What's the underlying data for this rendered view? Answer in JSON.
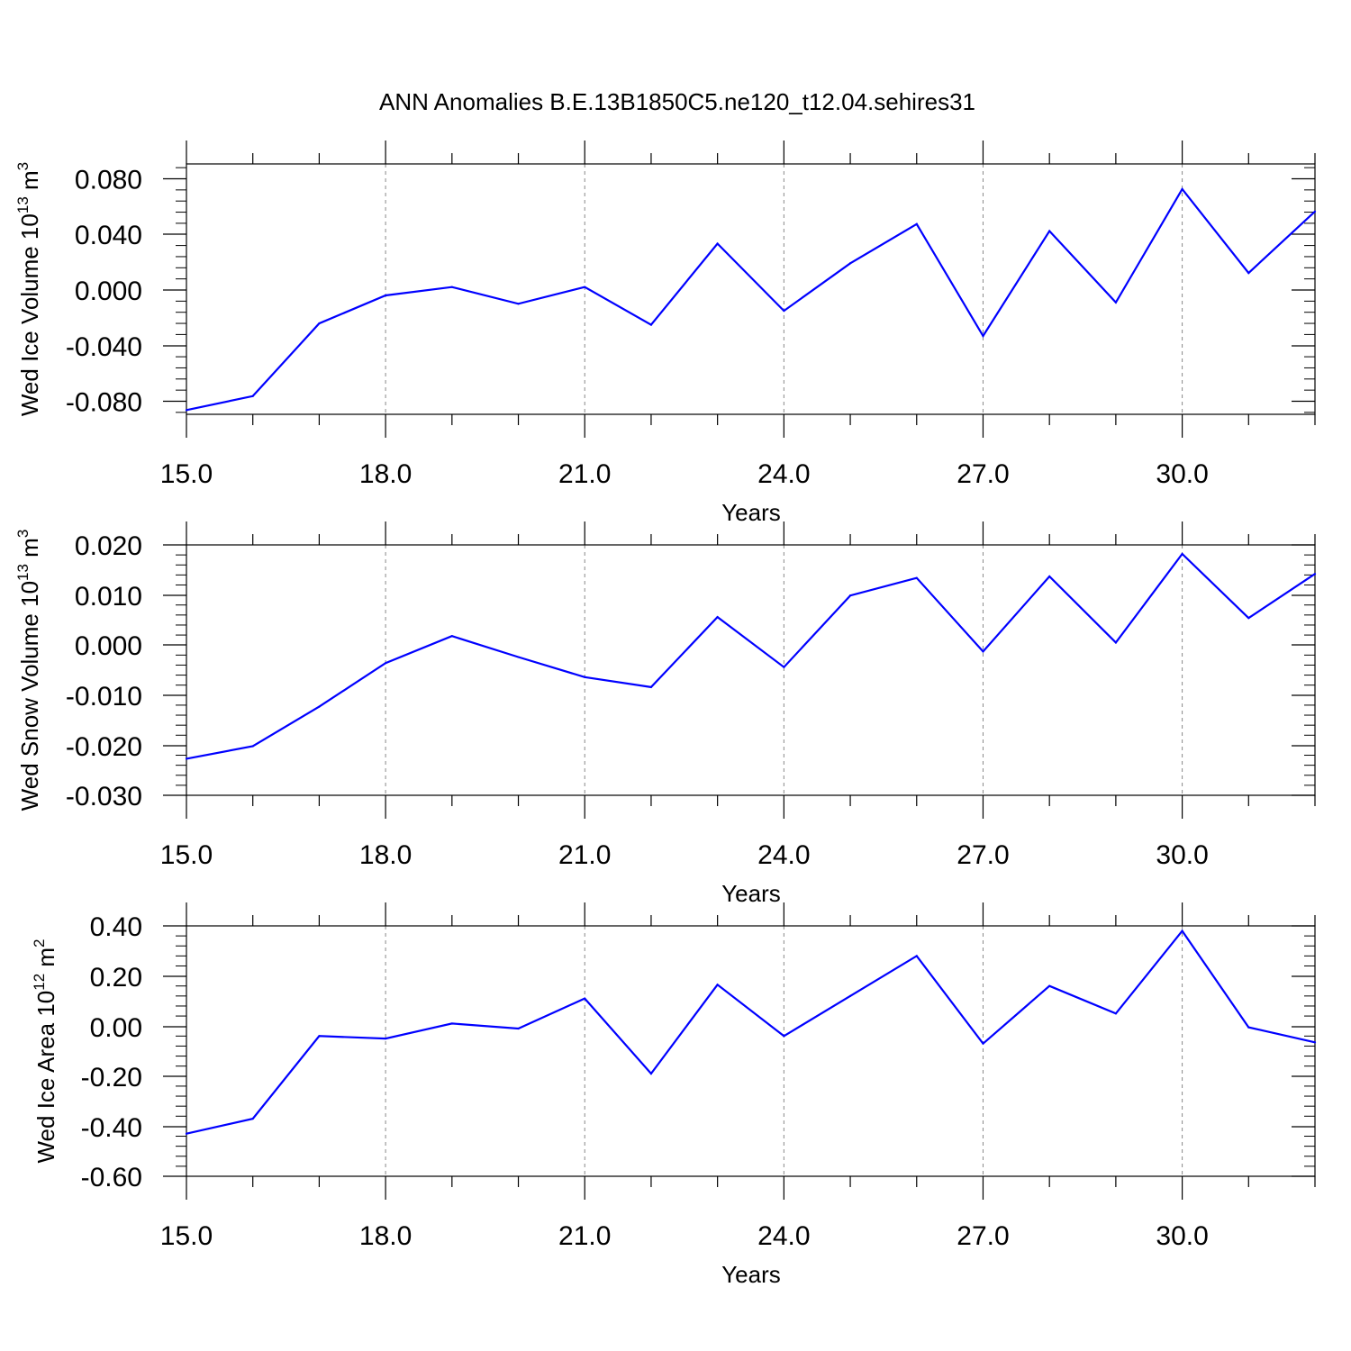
{
  "title": "ANN Anomalies B.E.13B1850C5.ne120_t12.04.sehires31",
  "colors": {
    "line": "#0000ff",
    "axis": "#000000",
    "grid": "#888888",
    "background": "#ffffff"
  },
  "chart_data": [
    {
      "type": "line",
      "ylabel": {
        "main": "Wed Ice Volume 10",
        "sup": "13",
        "unit": " m",
        "unit_sup": "3"
      },
      "xlabel": "Years",
      "xlim": [
        15,
        32
      ],
      "ylim": [
        -0.089,
        0.09
      ],
      "x_ticks": [
        "15.0",
        "18.0",
        "21.0",
        "24.0",
        "27.0",
        "30.0"
      ],
      "y_ticks": [
        "0.080",
        "0.040",
        "0.000",
        "-0.040",
        "-0.080"
      ],
      "grid": "vertical dashed at major x ticks",
      "series": [
        {
          "name": "Wed Ice Volume",
          "x": [
            15,
            16,
            17,
            18,
            19,
            20,
            21,
            22,
            23,
            24,
            25,
            26,
            27,
            28,
            29,
            30,
            31,
            32
          ],
          "values": [
            -0.086,
            -0.076,
            -0.024,
            -0.004,
            0.002,
            -0.01,
            0.002,
            -0.025,
            0.033,
            -0.015,
            0.019,
            0.047,
            -0.033,
            0.042,
            -0.009,
            0.072,
            0.012,
            0.056
          ]
        }
      ]
    },
    {
      "type": "line",
      "ylabel": {
        "main": "Wed Snow Volume 10",
        "sup": "13",
        "unit": " m",
        "unit_sup": "3"
      },
      "xlabel": "Years",
      "xlim": [
        15,
        32
      ],
      "ylim": [
        -0.03,
        0.02
      ],
      "x_ticks": [
        "15.0",
        "18.0",
        "21.0",
        "24.0",
        "27.0",
        "30.0"
      ],
      "y_ticks": [
        "0.020",
        "0.010",
        "0.000",
        "-0.010",
        "-0.020",
        "-0.030"
      ],
      "grid": "vertical dashed at major x ticks",
      "series": [
        {
          "name": "Wed Snow Volume",
          "x": [
            15,
            16,
            17,
            18,
            19,
            20,
            21,
            22,
            23,
            24,
            25,
            26,
            27,
            28,
            29,
            30,
            31,
            32
          ],
          "values": [
            -0.0227,
            -0.0202,
            -0.0123,
            -0.0036,
            0.0018,
            -0.0024,
            -0.0064,
            -0.0084,
            0.0056,
            -0.0044,
            0.0099,
            0.0134,
            -0.0013,
            0.0137,
            0.0005,
            0.0182,
            0.0054,
            0.0142
          ]
        }
      ]
    },
    {
      "type": "line",
      "ylabel": {
        "main": "Wed Ice Area 10",
        "sup": "12",
        "unit": " m",
        "unit_sup": "2"
      },
      "xlabel": "Years",
      "xlim": [
        15,
        32
      ],
      "ylim": [
        -0.6,
        0.4
      ],
      "x_ticks": [
        "15.0",
        "18.0",
        "21.0",
        "24.0",
        "27.0",
        "30.0"
      ],
      "y_ticks": [
        "0.40",
        "0.20",
        "0.00",
        "-0.20",
        "-0.40",
        "-0.60"
      ],
      "grid": "vertical dashed at major x ticks",
      "series": [
        {
          "name": "Wed Ice Area",
          "x": [
            15,
            16,
            17,
            18,
            19,
            20,
            21,
            22,
            23,
            24,
            25,
            26,
            27,
            28,
            29,
            30,
            31,
            32
          ],
          "values": [
            -0.43,
            -0.37,
            -0.04,
            -0.05,
            0.01,
            -0.01,
            0.11,
            -0.19,
            0.165,
            -0.04,
            0.12,
            0.28,
            -0.07,
            0.16,
            0.05,
            0.38,
            -0.005,
            -0.065
          ]
        }
      ]
    }
  ]
}
